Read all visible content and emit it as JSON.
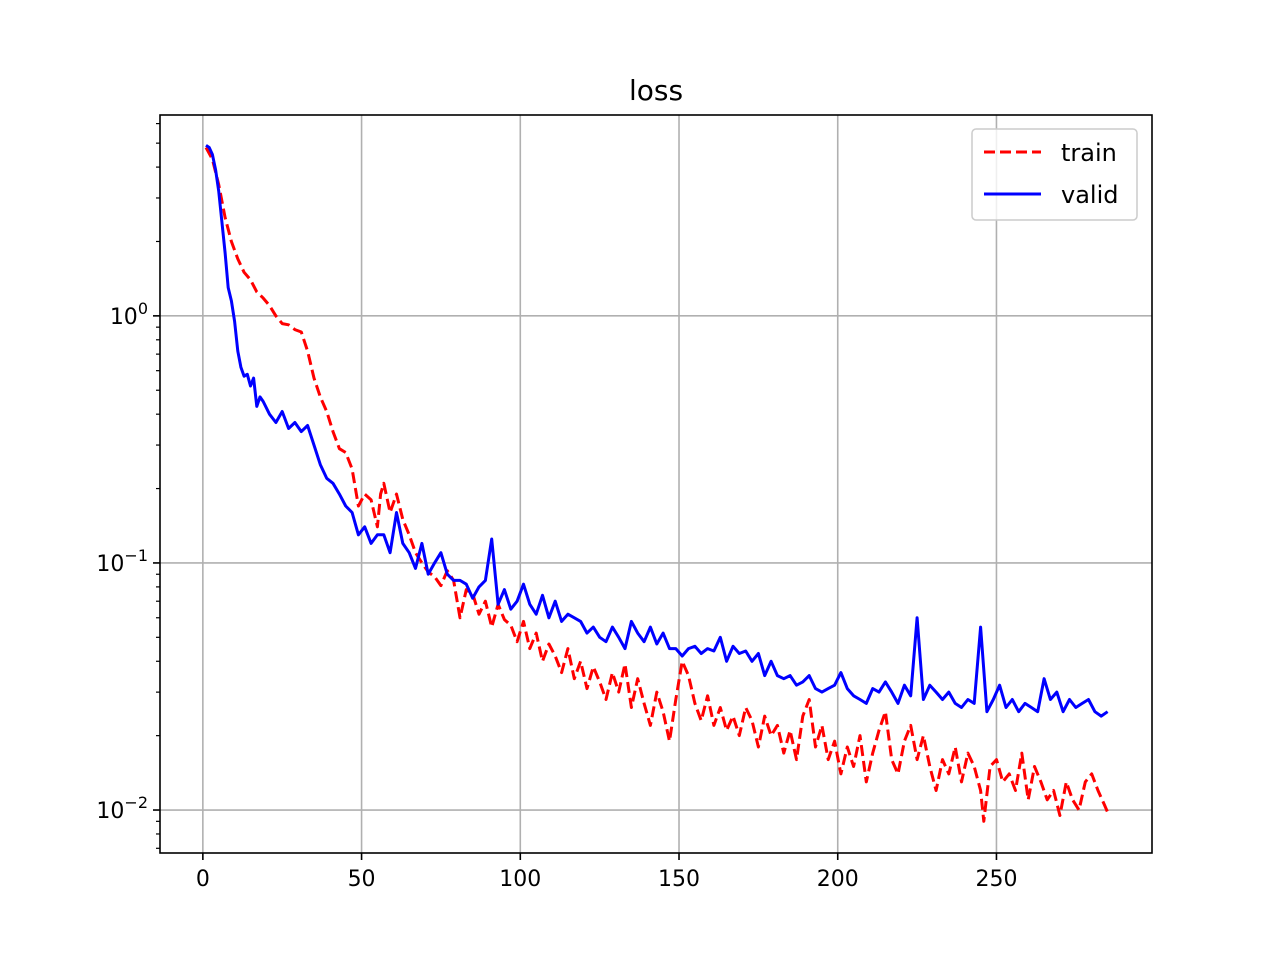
{
  "chart_data": {
    "type": "line",
    "title": "loss",
    "xlabel": "",
    "ylabel": "",
    "xlim": [
      -13.5,
      299
    ],
    "ylim": [
      0.0067,
      6.5
    ],
    "yscale": "log",
    "grid": true,
    "legend_position": "top-right",
    "x_ticks": [
      {
        "value": 0,
        "label": "0"
      },
      {
        "value": 50,
        "label": "50"
      },
      {
        "value": 100,
        "label": "100"
      },
      {
        "value": 150,
        "label": "150"
      },
      {
        "value": 200,
        "label": "200"
      },
      {
        "value": 250,
        "label": "250"
      }
    ],
    "y_ticks": [
      {
        "value": 1,
        "base": "10",
        "exp": "0"
      },
      {
        "value": 0.1,
        "base": "10",
        "exp": "−1"
      },
      {
        "value": 0.01,
        "base": "10",
        "exp": "−2"
      }
    ],
    "series": [
      {
        "name": "train",
        "color": "#ff0000",
        "style": "dashed",
        "points": [
          [
            1,
            4.8
          ],
          [
            3,
            4.3
          ],
          [
            5,
            3.4
          ],
          [
            7,
            2.5
          ],
          [
            9,
            2.0
          ],
          [
            11,
            1.7
          ],
          [
            13,
            1.5
          ],
          [
            15,
            1.4
          ],
          [
            17,
            1.25
          ],
          [
            19,
            1.18
          ],
          [
            21,
            1.1
          ],
          [
            23,
            1.0
          ],
          [
            25,
            0.93
          ],
          [
            27,
            0.92
          ],
          [
            29,
            0.88
          ],
          [
            31,
            0.86
          ],
          [
            33,
            0.72
          ],
          [
            35,
            0.56
          ],
          [
            37,
            0.47
          ],
          [
            39,
            0.41
          ],
          [
            41,
            0.34
          ],
          [
            43,
            0.29
          ],
          [
            45,
            0.28
          ],
          [
            47,
            0.24
          ],
          [
            49,
            0.17
          ],
          [
            51,
            0.19
          ],
          [
            53,
            0.18
          ],
          [
            55,
            0.14
          ],
          [
            56,
            0.19
          ],
          [
            57,
            0.21
          ],
          [
            59,
            0.16
          ],
          [
            61,
            0.19
          ],
          [
            63,
            0.15
          ],
          [
            65,
            0.13
          ],
          [
            67,
            0.11
          ],
          [
            69,
            0.1
          ],
          [
            71,
            0.092
          ],
          [
            73,
            0.088
          ],
          [
            75,
            0.081
          ],
          [
            77,
            0.093
          ],
          [
            79,
            0.085
          ],
          [
            81,
            0.06
          ],
          [
            83,
            0.078
          ],
          [
            85,
            0.075
          ],
          [
            87,
            0.062
          ],
          [
            89,
            0.07
          ],
          [
            91,
            0.055
          ],
          [
            93,
            0.068
          ],
          [
            95,
            0.059
          ],
          [
            97,
            0.056
          ],
          [
            99,
            0.048
          ],
          [
            101,
            0.058
          ],
          [
            103,
            0.045
          ],
          [
            105,
            0.052
          ],
          [
            107,
            0.04
          ],
          [
            109,
            0.047
          ],
          [
            111,
            0.042
          ],
          [
            113,
            0.036
          ],
          [
            115,
            0.045
          ],
          [
            117,
            0.034
          ],
          [
            119,
            0.04
          ],
          [
            121,
            0.031
          ],
          [
            123,
            0.038
          ],
          [
            125,
            0.033
          ],
          [
            127,
            0.028
          ],
          [
            129,
            0.036
          ],
          [
            131,
            0.03
          ],
          [
            133,
            0.039
          ],
          [
            135,
            0.026
          ],
          [
            137,
            0.034
          ],
          [
            139,
            0.027
          ],
          [
            141,
            0.022
          ],
          [
            143,
            0.03
          ],
          [
            145,
            0.025
          ],
          [
            147,
            0.019
          ],
          [
            149,
            0.028
          ],
          [
            151,
            0.04
          ],
          [
            153,
            0.035
          ],
          [
            155,
            0.027
          ],
          [
            157,
            0.023
          ],
          [
            159,
            0.029
          ],
          [
            161,
            0.022
          ],
          [
            163,
            0.026
          ],
          [
            165,
            0.021
          ],
          [
            167,
            0.024
          ],
          [
            169,
            0.02
          ],
          [
            171,
            0.026
          ],
          [
            173,
            0.023
          ],
          [
            175,
            0.018
          ],
          [
            177,
            0.024
          ],
          [
            179,
            0.02
          ],
          [
            181,
            0.022
          ],
          [
            183,
            0.017
          ],
          [
            185,
            0.021
          ],
          [
            187,
            0.016
          ],
          [
            189,
            0.024
          ],
          [
            191,
            0.028
          ],
          [
            193,
            0.018
          ],
          [
            195,
            0.022
          ],
          [
            197,
            0.016
          ],
          [
            199,
            0.019
          ],
          [
            201,
            0.014
          ],
          [
            203,
            0.018
          ],
          [
            205,
            0.015
          ],
          [
            207,
            0.02
          ],
          [
            209,
            0.013
          ],
          [
            211,
            0.017
          ],
          [
            213,
            0.021
          ],
          [
            215,
            0.025
          ],
          [
            217,
            0.016
          ],
          [
            219,
            0.014
          ],
          [
            221,
            0.019
          ],
          [
            223,
            0.022
          ],
          [
            225,
            0.016
          ],
          [
            227,
            0.02
          ],
          [
            229,
            0.015
          ],
          [
            231,
            0.012
          ],
          [
            233,
            0.016
          ],
          [
            235,
            0.014
          ],
          [
            237,
            0.018
          ],
          [
            239,
            0.013
          ],
          [
            241,
            0.017
          ],
          [
            243,
            0.015
          ],
          [
            245,
            0.012
          ],
          [
            246,
            0.009
          ],
          [
            248,
            0.015
          ],
          [
            250,
            0.016
          ],
          [
            252,
            0.013
          ],
          [
            254,
            0.014
          ],
          [
            256,
            0.012
          ],
          [
            258,
            0.017
          ],
          [
            260,
            0.011
          ],
          [
            262,
            0.015
          ],
          [
            264,
            0.013
          ],
          [
            266,
            0.011
          ],
          [
            268,
            0.012
          ],
          [
            270,
            0.0095
          ],
          [
            272,
            0.013
          ],
          [
            274,
            0.011
          ],
          [
            276,
            0.01
          ],
          [
            278,
            0.013
          ],
          [
            280,
            0.014
          ],
          [
            282,
            0.012
          ],
          [
            284,
            0.0105
          ],
          [
            285,
            0.0098
          ]
        ]
      },
      {
        "name": "valid",
        "color": "#0000ff",
        "style": "solid",
        "points": [
          [
            1,
            4.9
          ],
          [
            2,
            4.8
          ],
          [
            3,
            4.5
          ],
          [
            4,
            3.9
          ],
          [
            5,
            3.2
          ],
          [
            6,
            2.4
          ],
          [
            7,
            1.8
          ],
          [
            8,
            1.3
          ],
          [
            9,
            1.15
          ],
          [
            10,
            0.95
          ],
          [
            11,
            0.72
          ],
          [
            12,
            0.62
          ],
          [
            13,
            0.57
          ],
          [
            14,
            0.58
          ],
          [
            15,
            0.52
          ],
          [
            16,
            0.56
          ],
          [
            17,
            0.43
          ],
          [
            18,
            0.47
          ],
          [
            19,
            0.45
          ],
          [
            21,
            0.4
          ],
          [
            23,
            0.37
          ],
          [
            25,
            0.41
          ],
          [
            27,
            0.35
          ],
          [
            29,
            0.37
          ],
          [
            31,
            0.34
          ],
          [
            33,
            0.36
          ],
          [
            35,
            0.3
          ],
          [
            37,
            0.25
          ],
          [
            39,
            0.22
          ],
          [
            41,
            0.21
          ],
          [
            43,
            0.19
          ],
          [
            45,
            0.17
          ],
          [
            47,
            0.16
          ],
          [
            49,
            0.13
          ],
          [
            51,
            0.14
          ],
          [
            53,
            0.12
          ],
          [
            55,
            0.13
          ],
          [
            57,
            0.13
          ],
          [
            59,
            0.11
          ],
          [
            61,
            0.16
          ],
          [
            63,
            0.12
          ],
          [
            65,
            0.11
          ],
          [
            67,
            0.095
          ],
          [
            69,
            0.12
          ],
          [
            71,
            0.09
          ],
          [
            73,
            0.1
          ],
          [
            75,
            0.11
          ],
          [
            77,
            0.09
          ],
          [
            79,
            0.085
          ],
          [
            81,
            0.085
          ],
          [
            83,
            0.082
          ],
          [
            85,
            0.072
          ],
          [
            87,
            0.08
          ],
          [
            89,
            0.085
          ],
          [
            91,
            0.125
          ],
          [
            93,
            0.068
          ],
          [
            95,
            0.078
          ],
          [
            97,
            0.065
          ],
          [
            99,
            0.07
          ],
          [
            101,
            0.082
          ],
          [
            103,
            0.068
          ],
          [
            105,
            0.062
          ],
          [
            107,
            0.074
          ],
          [
            109,
            0.06
          ],
          [
            111,
            0.07
          ],
          [
            113,
            0.058
          ],
          [
            115,
            0.062
          ],
          [
            117,
            0.06
          ],
          [
            119,
            0.058
          ],
          [
            121,
            0.052
          ],
          [
            123,
            0.055
          ],
          [
            125,
            0.05
          ],
          [
            127,
            0.048
          ],
          [
            129,
            0.055
          ],
          [
            131,
            0.05
          ],
          [
            133,
            0.045
          ],
          [
            135,
            0.058
          ],
          [
            137,
            0.052
          ],
          [
            139,
            0.048
          ],
          [
            141,
            0.055
          ],
          [
            143,
            0.047
          ],
          [
            145,
            0.052
          ],
          [
            147,
            0.045
          ],
          [
            149,
            0.045
          ],
          [
            151,
            0.042
          ],
          [
            153,
            0.045
          ],
          [
            155,
            0.046
          ],
          [
            157,
            0.043
          ],
          [
            159,
            0.045
          ],
          [
            161,
            0.044
          ],
          [
            163,
            0.05
          ],
          [
            165,
            0.04
          ],
          [
            167,
            0.046
          ],
          [
            169,
            0.043
          ],
          [
            171,
            0.044
          ],
          [
            173,
            0.04
          ],
          [
            175,
            0.043
          ],
          [
            177,
            0.035
          ],
          [
            179,
            0.04
          ],
          [
            181,
            0.035
          ],
          [
            183,
            0.034
          ],
          [
            185,
            0.035
          ],
          [
            187,
            0.032
          ],
          [
            189,
            0.033
          ],
          [
            191,
            0.035
          ],
          [
            193,
            0.031
          ],
          [
            195,
            0.03
          ],
          [
            197,
            0.031
          ],
          [
            199,
            0.032
          ],
          [
            201,
            0.036
          ],
          [
            203,
            0.031
          ],
          [
            205,
            0.029
          ],
          [
            207,
            0.028
          ],
          [
            209,
            0.027
          ],
          [
            211,
            0.031
          ],
          [
            213,
            0.03
          ],
          [
            215,
            0.033
          ],
          [
            217,
            0.03
          ],
          [
            219,
            0.027
          ],
          [
            221,
            0.032
          ],
          [
            223,
            0.029
          ],
          [
            225,
            0.06
          ],
          [
            227,
            0.028
          ],
          [
            229,
            0.032
          ],
          [
            231,
            0.03
          ],
          [
            233,
            0.028
          ],
          [
            235,
            0.03
          ],
          [
            237,
            0.027
          ],
          [
            239,
            0.026
          ],
          [
            241,
            0.028
          ],
          [
            243,
            0.027
          ],
          [
            245,
            0.055
          ],
          [
            247,
            0.025
          ],
          [
            249,
            0.028
          ],
          [
            251,
            0.032
          ],
          [
            253,
            0.026
          ],
          [
            255,
            0.028
          ],
          [
            257,
            0.025
          ],
          [
            259,
            0.027
          ],
          [
            261,
            0.026
          ],
          [
            263,
            0.025
          ],
          [
            265,
            0.034
          ],
          [
            267,
            0.028
          ],
          [
            269,
            0.03
          ],
          [
            271,
            0.025
          ],
          [
            273,
            0.028
          ],
          [
            275,
            0.026
          ],
          [
            277,
            0.027
          ],
          [
            279,
            0.028
          ],
          [
            281,
            0.025
          ],
          [
            283,
            0.024
          ],
          [
            285,
            0.025
          ]
        ]
      }
    ]
  }
}
